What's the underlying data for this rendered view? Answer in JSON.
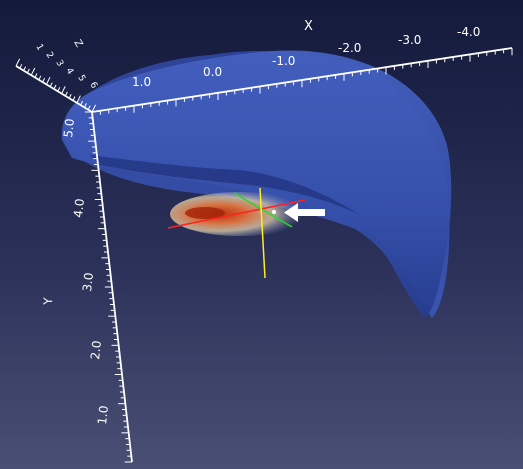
{
  "scene": {
    "x_axis": {
      "label": "X",
      "ticks": [
        "1.0",
        "0.0",
        "-1.0",
        "-2.0",
        "-3.0",
        "-4.0"
      ]
    },
    "y_axis": {
      "label": "Y",
      "ticks": [
        "5.0",
        "4.0",
        "3.0",
        "2.0",
        "1.0"
      ]
    },
    "z_axis": {
      "label": "Z",
      "ticks": [
        "1",
        "2",
        "3",
        "4",
        "5",
        "6"
      ]
    },
    "colors": {
      "surface": "#3a55b0",
      "surface_dark": "#24368a",
      "heat_hot": "#b02a10",
      "heat_warm": "#e8b070",
      "crosshair_red": "#ff2222",
      "crosshair_green": "#22dd22",
      "crosshair_yellow": "#ffee22",
      "pointer": "#ffffff"
    },
    "icons": [
      "arrow-pointer-icon"
    ]
  }
}
